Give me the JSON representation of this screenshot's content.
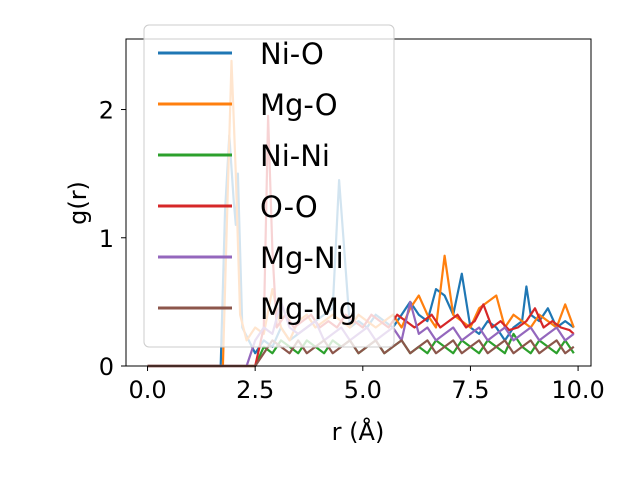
{
  "chart_data": {
    "type": "line",
    "xlabel": "r (Å)",
    "ylabel": "g(r)",
    "xlim": [
      -0.5,
      10.3
    ],
    "ylim": [
      0,
      2.55
    ],
    "xticks": [
      0.0,
      2.5,
      5.0,
      7.5,
      10.0
    ],
    "xtick_labels": [
      "0.0",
      "2.5",
      "5.0",
      "7.5",
      "10.0"
    ],
    "yticks": [
      0,
      1,
      2
    ],
    "ytick_labels": [
      "0",
      "1",
      "2"
    ],
    "grid": false,
    "legend_position": "top-left",
    "series": [
      {
        "name": "Ni-O",
        "color": "#1f77b4",
        "x": [
          0,
          1.7,
          1.8,
          1.9,
          2.0,
          2.05,
          2.1,
          2.2,
          2.5,
          2.7,
          2.9,
          3.1,
          3.3,
          3.5,
          3.7,
          3.9,
          4.1,
          4.3,
          4.45,
          4.55,
          4.7,
          4.9,
          5.1,
          5.3,
          5.5,
          5.7,
          5.9,
          6.0,
          6.1,
          6.3,
          6.5,
          6.7,
          6.9,
          7.1,
          7.3,
          7.5,
          7.7,
          7.9,
          8.1,
          8.3,
          8.5,
          8.7,
          8.8,
          8.9,
          9.1,
          9.3,
          9.5,
          9.7,
          9.9
        ],
        "y": [
          0,
          0,
          1.2,
          1.8,
          1.3,
          1.1,
          1.5,
          0.3,
          0.1,
          0.2,
          0.15,
          0.3,
          0.2,
          0.25,
          0.3,
          0.35,
          0.4,
          0.45,
          1.45,
          1.0,
          0.3,
          0.35,
          0.3,
          0.4,
          0.35,
          0.3,
          0.4,
          0.45,
          0.5,
          0.4,
          0.35,
          0.6,
          0.55,
          0.4,
          0.72,
          0.3,
          0.25,
          0.35,
          0.3,
          0.2,
          0.3,
          0.35,
          0.62,
          0.4,
          0.35,
          0.45,
          0.3,
          0.35,
          0.3
        ]
      },
      {
        "name": "Mg-O",
        "color": "#ff7f0e",
        "x": [
          0,
          1.75,
          1.85,
          1.95,
          2.05,
          2.15,
          2.3,
          2.5,
          2.7,
          2.9,
          3.1,
          3.3,
          3.5,
          3.7,
          3.9,
          4.1,
          4.3,
          4.5,
          4.7,
          4.9,
          5.1,
          5.3,
          5.5,
          5.7,
          5.9,
          6.1,
          6.3,
          6.5,
          6.7,
          6.9,
          7.1,
          7.3,
          7.5,
          7.7,
          7.9,
          8.1,
          8.3,
          8.5,
          8.7,
          8.9,
          9.1,
          9.3,
          9.5,
          9.7,
          9.9
        ],
        "y": [
          0,
          0,
          1.2,
          2.38,
          1.5,
          0.4,
          0.2,
          0.3,
          0.25,
          0.6,
          0.3,
          0.2,
          0.35,
          0.4,
          0.3,
          0.35,
          0.4,
          0.35,
          0.3,
          0.4,
          0.35,
          0.3,
          0.35,
          0.4,
          0.3,
          0.45,
          0.55,
          0.4,
          0.3,
          0.86,
          0.4,
          0.35,
          0.3,
          0.45,
          0.5,
          0.55,
          0.3,
          0.4,
          0.35,
          0.3,
          0.4,
          0.35,
          0.3,
          0.48,
          0.3
        ]
      },
      {
        "name": "Ni-Ni",
        "color": "#2ca02c",
        "x": [
          0,
          2.5,
          2.7,
          2.9,
          3.1,
          3.3,
          3.5,
          3.7,
          3.9,
          4.1,
          4.3,
          4.5,
          4.7,
          4.9,
          5.1,
          5.3,
          5.5,
          5.7,
          5.9,
          6.1,
          6.3,
          6.5,
          6.7,
          6.9,
          7.1,
          7.3,
          7.5,
          7.7,
          7.9,
          8.1,
          8.3,
          8.5,
          8.7,
          8.9,
          9.1,
          9.3,
          9.5,
          9.7,
          9.9
        ],
        "y": [
          0,
          0,
          0.15,
          0.1,
          0.2,
          0.15,
          0.1,
          0.2,
          0.15,
          0.1,
          0.2,
          0.15,
          0.2,
          0.1,
          0.15,
          0.2,
          0.1,
          0.15,
          0.2,
          0.1,
          0.15,
          0.1,
          0.2,
          0.15,
          0.1,
          0.2,
          0.15,
          0.1,
          0.2,
          0.15,
          0.1,
          0.25,
          0.15,
          0.1,
          0.2,
          0.15,
          0.1,
          0.2,
          0.1
        ]
      },
      {
        "name": "O-O",
        "color": "#d62728",
        "x": [
          0,
          2.5,
          2.7,
          2.8,
          2.9,
          3.0,
          3.2,
          3.4,
          3.6,
          3.8,
          4.0,
          4.2,
          4.4,
          4.6,
          4.8,
          5.0,
          5.2,
          5.4,
          5.6,
          5.8,
          6.0,
          6.2,
          6.4,
          6.6,
          6.8,
          7.0,
          7.2,
          7.4,
          7.6,
          7.8,
          8.0,
          8.2,
          8.4,
          8.6,
          8.8,
          9.0,
          9.2,
          9.4,
          9.6,
          9.8,
          9.9
        ],
        "y": [
          0,
          0,
          0.3,
          1.95,
          0.9,
          0.3,
          0.4,
          0.3,
          0.35,
          0.4,
          0.3,
          0.35,
          0.3,
          0.4,
          0.35,
          0.3,
          0.4,
          0.35,
          0.3,
          0.4,
          0.35,
          0.3,
          0.35,
          0.4,
          0.3,
          0.35,
          0.4,
          0.3,
          0.35,
          0.48,
          0.3,
          0.35,
          0.28,
          0.3,
          0.35,
          0.45,
          0.3,
          0.35,
          0.3,
          0.28,
          0.25
        ]
      },
      {
        "name": "Mg-Ni",
        "color": "#9467bd",
        "x": [
          0,
          2.3,
          2.5,
          2.7,
          2.9,
          3.1,
          3.3,
          3.5,
          3.7,
          3.9,
          4.1,
          4.3,
          4.5,
          4.7,
          4.9,
          5.1,
          5.3,
          5.5,
          5.7,
          5.9,
          6.1,
          6.3,
          6.5,
          6.7,
          6.9,
          7.1,
          7.3,
          7.5,
          7.7,
          7.9,
          8.1,
          8.3,
          8.5,
          8.7,
          8.9,
          9.1,
          9.3,
          9.5,
          9.7,
          9.9
        ],
        "y": [
          0,
          0,
          0.2,
          0.3,
          0.25,
          0.5,
          0.3,
          0.25,
          0.3,
          0.35,
          0.2,
          0.25,
          0.3,
          0.2,
          0.25,
          0.3,
          0.2,
          0.25,
          0.3,
          0.2,
          0.5,
          0.25,
          0.3,
          0.2,
          0.25,
          0.3,
          0.2,
          0.25,
          0.3,
          0.2,
          0.25,
          0.3,
          0.2,
          0.25,
          0.3,
          0.2,
          0.25,
          0.3,
          0.2,
          0.25
        ]
      },
      {
        "name": "Mg-Mg",
        "color": "#8c564b",
        "x": [
          0,
          2.5,
          2.7,
          2.9,
          3.1,
          3.3,
          3.5,
          3.7,
          3.9,
          4.1,
          4.3,
          4.5,
          4.7,
          4.9,
          5.1,
          5.3,
          5.5,
          5.7,
          5.9,
          6.1,
          6.3,
          6.5,
          6.7,
          6.9,
          7.1,
          7.3,
          7.5,
          7.7,
          7.9,
          8.1,
          8.3,
          8.5,
          8.7,
          8.9,
          9.1,
          9.3,
          9.5,
          9.7,
          9.9
        ],
        "y": [
          0,
          0,
          0.1,
          0.2,
          0.15,
          0.1,
          0.2,
          0.1,
          0.15,
          0.2,
          0.1,
          0.15,
          0.2,
          0.1,
          0.15,
          0.2,
          0.1,
          0.15,
          0.2,
          0.1,
          0.15,
          0.2,
          0.1,
          0.15,
          0.2,
          0.1,
          0.15,
          0.2,
          0.1,
          0.15,
          0.2,
          0.1,
          0.15,
          0.2,
          0.1,
          0.15,
          0.2,
          0.1,
          0.15
        ]
      }
    ]
  }
}
